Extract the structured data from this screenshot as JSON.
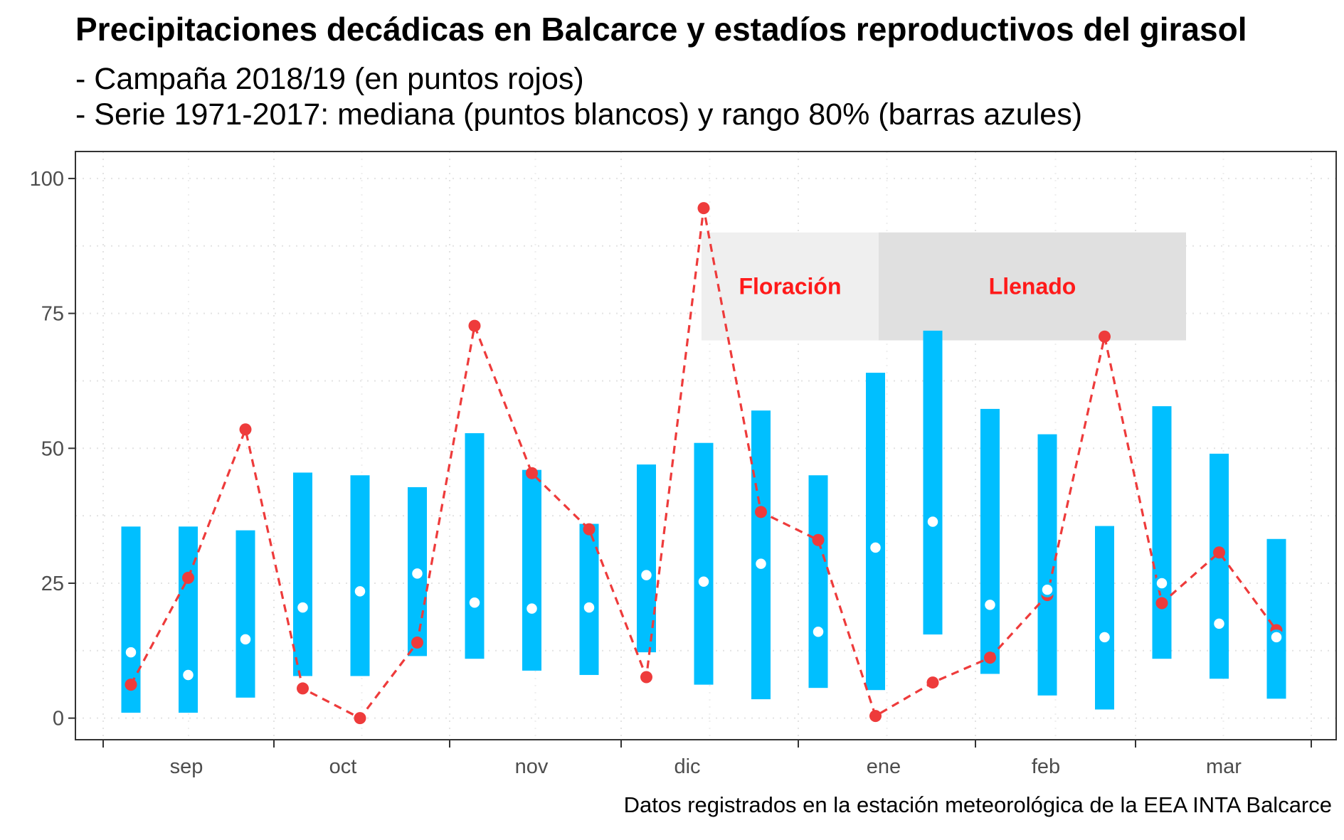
{
  "chart_data": {
    "type": "line",
    "title": "Precipitaciones decádicas en Balcarce y estadíos reproductivos del girasol",
    "subtitle_lines": [
      "- Campaña 2018/19 (en puntos rojos)",
      "- Serie 1971-2017: mediana (puntos blancos) y rango 80% (barras azules)"
    ],
    "caption": "Datos registrados en la estación meteorológica de la EEA INTA Balcarce",
    "ylim": [
      -4,
      105
    ],
    "y_ticks": [
      0,
      25,
      50,
      75,
      100
    ],
    "y_tick_labels": [
      "0",
      "25",
      "50",
      "75",
      "100"
    ],
    "x_month_labels": [
      "sep",
      "oct",
      "nov",
      "dic",
      "ene",
      "feb",
      "mar"
    ],
    "grid": true,
    "colors": {
      "range_bar": "#00bfff",
      "campaign": "#ee3b3b",
      "median_fill": "#ffffff",
      "floracion_band": "#efefef",
      "llenado_band": "#e0e0e0",
      "stage_text": "#ff1a1a"
    },
    "series": [
      {
        "values": [
          6.2,
          26,
          53.5,
          5.5,
          0,
          14,
          72.7,
          45.4,
          35,
          7.6,
          94.5,
          38.2,
          33,
          0.4,
          6.6,
          11.2,
          22.8,
          70.7,
          21.3,
          30.7,
          16.3
        ]
      },
      {
        "values": [
          12.2,
          8,
          14.6,
          20.5,
          23.5,
          26.8,
          21.4,
          20.3,
          20.5,
          26.5,
          25.3,
          28.6,
          16,
          31.6,
          36.4,
          21,
          23.8,
          15,
          25,
          17.5,
          15
        ]
      },
      {
        "low": [
          1,
          1,
          3.8,
          7.8,
          7.8,
          11.5,
          11,
          8.8,
          8,
          12.2,
          6.2,
          3.5,
          5.6,
          5.2,
          15.5,
          8.2,
          4.2,
          1.6,
          11,
          7.3,
          3.6
        ],
        "high": [
          35.5,
          35.5,
          34.8,
          45.5,
          45,
          42.8,
          52.8,
          46,
          36,
          47,
          51,
          57,
          45,
          64,
          71.8,
          57.3,
          52.6,
          35.6,
          57.8,
          49,
          33.2
        ]
      }
    ],
    "stages": [
      {
        "label": "Floración",
        "y_range": [
          70,
          90
        ]
      },
      {
        "label": "Llenado",
        "y_range": [
          70,
          90
        ]
      }
    ]
  }
}
